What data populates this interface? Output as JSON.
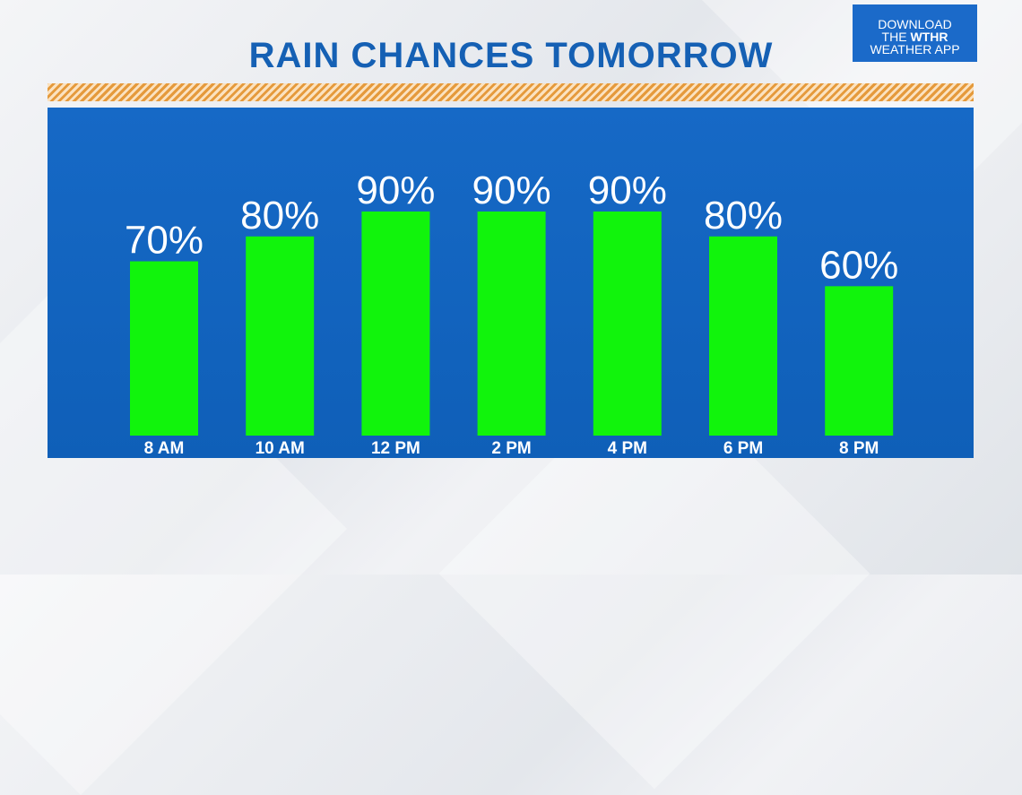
{
  "chart_data": {
    "type": "bar",
    "title": "RAIN CHANCES TOMORROW",
    "categories": [
      "8 AM",
      "10 AM",
      "12 PM",
      "2 PM",
      "4 PM",
      "6 PM",
      "8 PM"
    ],
    "values": [
      70,
      80,
      90,
      90,
      90,
      80,
      60
    ],
    "value_labels": [
      "70%",
      "80%",
      "90%",
      "90%",
      "90%",
      "80%",
      "60%"
    ],
    "ylim": [
      0,
      100
    ],
    "bar_color": "#11f40c",
    "background_color": "#1165c2",
    "grid": false,
    "legend": "none"
  },
  "badge": {
    "line1": "DOWNLOAD",
    "line2_prefix": "THE ",
    "line2_brand": "WTHR",
    "line3": "WEATHER APP"
  },
  "colors": {
    "title": "#1560b4",
    "stripe": "#e59a3c",
    "badge": "#1b6ac9"
  }
}
